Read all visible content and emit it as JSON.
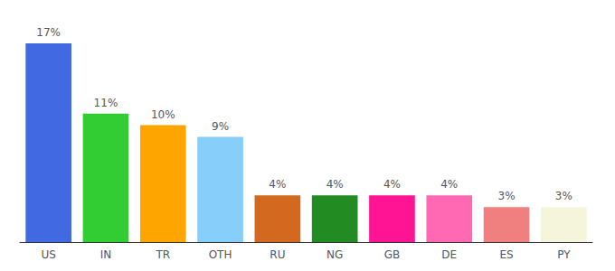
{
  "chart_data": {
    "type": "bar",
    "categories": [
      "US",
      "IN",
      "TR",
      "OTH",
      "RU",
      "NG",
      "GB",
      "DE",
      "ES",
      "PY"
    ],
    "values": [
      17,
      11,
      10,
      9,
      4,
      4,
      4,
      4,
      3,
      3
    ],
    "value_labels": [
      "17%",
      "11%",
      "10%",
      "9%",
      "4%",
      "4%",
      "4%",
      "4%",
      "3%",
      "3%"
    ],
    "colors": [
      "#4169e1",
      "#32cd32",
      "#ffa500",
      "#87cefa",
      "#d2691e",
      "#228b22",
      "#ff1493",
      "#ff69b4",
      "#f08080",
      "#f5f5dc"
    ],
    "data_labels": true,
    "tick_labels": "x"
  }
}
